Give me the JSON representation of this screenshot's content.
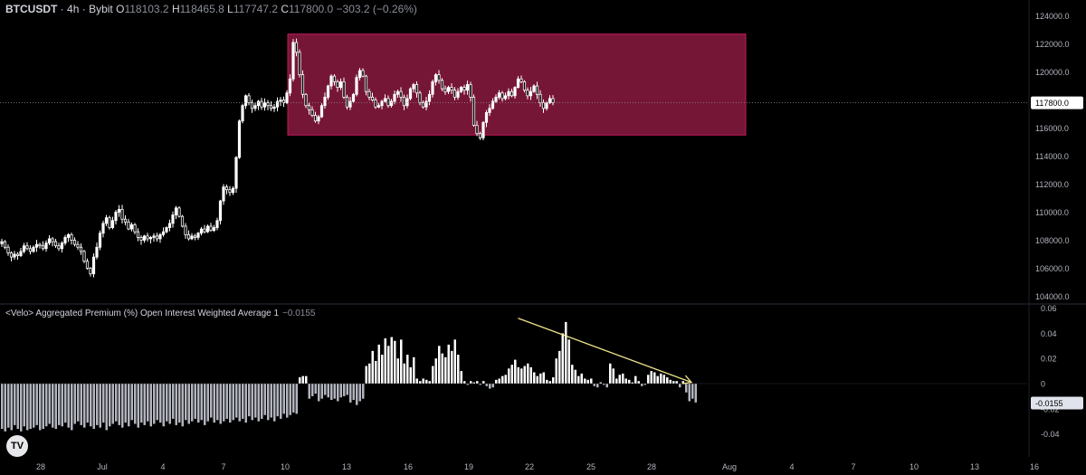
{
  "header": {
    "symbol": "BTCUSDT",
    "timeframe": "4h",
    "exchange": "Bybit",
    "o_label": "O",
    "o_value": "118103.2",
    "h_label": "H",
    "h_value": "118465.8",
    "l_label": "L",
    "l_value": "117747.2",
    "c_label": "C",
    "c_value": "117800.0",
    "change": "−303.2 (−0.26%)"
  },
  "indicator": {
    "name": "<Velo> Aggregated Premium (%) Open Interest Weighted Average 1",
    "value": "−0.0155"
  },
  "logo_text": "TV",
  "colors": {
    "background": "#000000",
    "candle": "#ffffff",
    "range_box": "#8b1a3f",
    "range_box_border": "#c2185b",
    "histogram_up": "#ffffff",
    "histogram_down": "#b2b5be",
    "trend_arrow": "#f0e68c",
    "axis_text": "#b2b5be",
    "last_price_label_bg": "#ffffff"
  },
  "chart_data": [
    {
      "type": "candlestick",
      "title": "BTCUSDT · 4h · Bybit",
      "x_ticks": [
        "28",
        "Jul",
        "4",
        "7",
        "10",
        "13",
        "16",
        "19",
        "22",
        "25",
        "28",
        "Aug",
        "4",
        "7",
        "10",
        "13",
        "16"
      ],
      "y_ticks": [
        "124000.0",
        "122000.0",
        "120000.0",
        "118000.0",
        "116000.0",
        "114000.0",
        "112000.0",
        "110000.0",
        "108000.0",
        "106000.0",
        "104000.0"
      ],
      "ylim": [
        103500,
        124500
      ],
      "last_price": "117800.0",
      "range_box": {
        "x_start": "Jul 10",
        "x_end": "Jul 29",
        "y_low": 115500,
        "y_high": 122700
      },
      "closes": [
        107900,
        107500,
        107100,
        106800,
        107000,
        106900,
        107200,
        107600,
        107400,
        107200,
        107500,
        107700,
        107600,
        107400,
        107800,
        108100,
        107900,
        107600,
        107400,
        107800,
        108200,
        108400,
        108000,
        107700,
        107500,
        107200,
        106500,
        106000,
        105600,
        106800,
        107500,
        108500,
        109200,
        109600,
        108900,
        109400,
        110000,
        110200,
        109500,
        109300,
        108800,
        109100,
        108600,
        108200,
        108000,
        108300,
        108100,
        108200,
        108300,
        108100,
        108400,
        108600,
        108900,
        109200,
        109800,
        110300,
        109700,
        109000,
        108400,
        108100,
        108300,
        108200,
        108500,
        108800,
        108600,
        109000,
        108700,
        108900,
        109400,
        110800,
        111800,
        111600,
        111400,
        111700,
        113900,
        116500,
        117600,
        118300,
        117800,
        117400,
        117600,
        117900,
        117500,
        117800,
        117600,
        117400,
        117500,
        117900,
        118000,
        117800,
        118500,
        119500,
        122100,
        121400,
        119800,
        118400,
        117600,
        117300,
        116900,
        116500,
        116800,
        117600,
        118200,
        119000,
        119700,
        119300,
        118900,
        119300,
        118200,
        117500,
        117900,
        118400,
        119600,
        120100,
        119700,
        118600,
        118200,
        118000,
        117500,
        117600,
        117900,
        118100,
        117600,
        117900,
        118400,
        118600,
        118200,
        117600,
        118100,
        118800,
        119100,
        118500,
        117800,
        117500,
        117900,
        118400,
        119300,
        119800,
        119400,
        118800,
        118600,
        118900,
        118700,
        118200,
        118600,
        118900,
        118700,
        119100,
        118200,
        116200,
        115600,
        115300,
        116400,
        117100,
        117400,
        117900,
        118200,
        118500,
        118100,
        118300,
        118600,
        118300,
        118900,
        119500,
        119300,
        118700,
        118300,
        118600,
        119000,
        118400,
        117800,
        117400,
        117800,
        118100,
        117800
      ]
    },
    {
      "type": "bar",
      "title": "<Velo> Aggregated Premium (%) Open Interest Weighted Average 1",
      "y_ticks": [
        "0.06",
        "0.04",
        "0.02",
        "0",
        "-0.02",
        "-0.04"
      ],
      "ylim": [
        -0.048,
        0.062
      ],
      "last_value": "-0.0155",
      "trend_arrow": {
        "from": {
          "index": 163,
          "value": 0.052
        },
        "to": {
          "index": 218,
          "value": 0.001
        }
      },
      "values": [
        -0.036,
        -0.038,
        -0.035,
        -0.037,
        -0.033,
        -0.036,
        -0.038,
        -0.034,
        -0.037,
        -0.036,
        -0.035,
        -0.033,
        -0.037,
        -0.036,
        -0.034,
        -0.032,
        -0.035,
        -0.036,
        -0.033,
        -0.034,
        -0.031,
        -0.035,
        -0.037,
        -0.032,
        -0.03,
        -0.033,
        -0.035,
        -0.031,
        -0.034,
        -0.036,
        -0.033,
        -0.035,
        -0.031,
        -0.037,
        -0.034,
        -0.032,
        -0.03,
        -0.033,
        -0.035,
        -0.031,
        -0.034,
        -0.029,
        -0.032,
        -0.035,
        -0.031,
        -0.033,
        -0.03,
        -0.034,
        -0.032,
        -0.029,
        -0.031,
        -0.034,
        -0.03,
        -0.032,
        -0.028,
        -0.033,
        -0.031,
        -0.034,
        -0.029,
        -0.032,
        -0.03,
        -0.028,
        -0.031,
        -0.029,
        -0.033,
        -0.03,
        -0.027,
        -0.031,
        -0.029,
        -0.032,
        -0.03,
        -0.028,
        -0.031,
        -0.029,
        -0.027,
        -0.03,
        -0.028,
        -0.031,
        -0.026,
        -0.029,
        -0.027,
        -0.03,
        -0.028,
        -0.025,
        -0.029,
        -0.027,
        -0.03,
        -0.026,
        -0.028,
        -0.024,
        -0.027,
        -0.025,
        -0.023,
        -0.024,
        0.005,
        0.006,
        0.006,
        -0.012,
        -0.01,
        -0.008,
        -0.014,
        -0.012,
        -0.009,
        -0.011,
        -0.013,
        -0.012,
        -0.014,
        -0.011,
        -0.01,
        -0.009,
        -0.015,
        -0.013,
        -0.017,
        -0.014,
        -0.012,
        0.014,
        0.016,
        0.026,
        0.018,
        0.031,
        0.023,
        0.036,
        0.03,
        0.037,
        0.034,
        0.02,
        0.035,
        0.016,
        0.023,
        0.013,
        0.021,
        0.004,
        0.002,
        0.004,
        0.003,
        0.002,
        0.014,
        0.02,
        0.03,
        0.024,
        0.021,
        0.031,
        0.026,
        0.035,
        0.023,
        0.01,
        0.002,
        -0.001,
        0.002,
        0.001,
        0.002,
        -0.001,
        0.002,
        -0.002,
        -0.004,
        -0.003,
        0.003,
        0.004,
        0.006,
        0.007,
        0.012,
        0.015,
        0.019,
        0.013,
        0.012,
        0.014,
        0.016,
        0.013,
        0.009,
        0.006,
        0.008,
        0.009,
        0.003,
        0.002,
        0.005,
        0.02,
        0.026,
        0.04,
        0.049,
        0.035,
        0.015,
        0.011,
        0.006,
        0.008,
        0.004,
        0.003,
        0.004,
        -0.002,
        -0.003,
        0.001,
        -0.001,
        -0.003,
        0.016,
        0.012,
        0.004,
        0.007,
        0.008,
        0.004,
        0.003,
        0.001,
        0.006,
        0.002,
        -0.002,
        -0.001,
        0.007,
        0.01,
        0.009,
        0.006,
        0.008,
        0.007,
        0.005,
        0.003,
        0.002,
        0.002,
        -0.003,
        0.002,
        -0.007,
        -0.014,
        -0.012,
        -0.015
      ]
    }
  ]
}
